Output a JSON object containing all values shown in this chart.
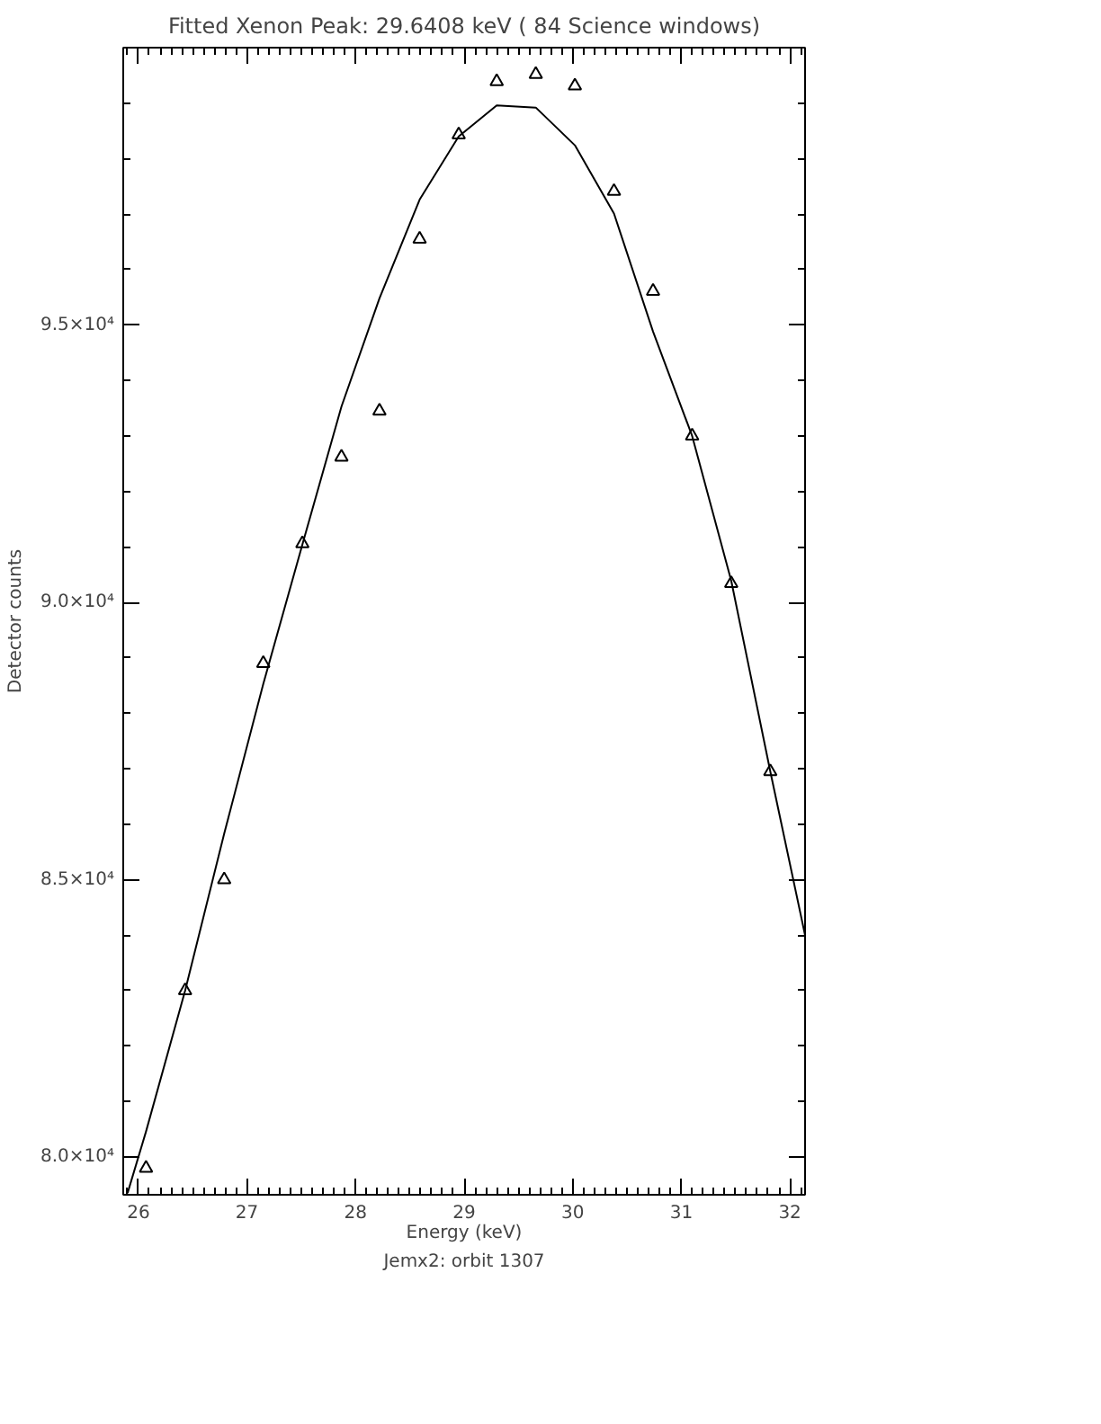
{
  "chart_data": {
    "type": "scatter",
    "title": "Fitted Xenon Peak: 29.6408 keV ( 84 Science windows)",
    "xlabel": "Energy (keV)",
    "ylabel": "Detector counts",
    "annotations": [
      "Jemx2: orbit 1307"
    ],
    "xlim": [
      25.86,
      32.14
    ],
    "ylim": [
      79320,
      100000
    ],
    "xticks": [
      26,
      27,
      28,
      29,
      30,
      31,
      32
    ],
    "yticks": [
      {
        "value": 80000,
        "label": "8.0×10⁴"
      },
      {
        "value": 85000,
        "label": "8.5×10⁴"
      },
      {
        "value": 90000,
        "label": "9.0×10⁴"
      },
      {
        "value": 95000,
        "label": "9.5×10⁴"
      },
      {
        "value": 100000,
        "label": null
      }
    ],
    "grid": false,
    "series": [
      {
        "marker": "triangle",
        "color": "#000000",
        "x": [
          26.07,
          26.43,
          26.79,
          27.15,
          27.51,
          27.87,
          28.22,
          28.59,
          28.95,
          29.3,
          29.66,
          30.02,
          30.38,
          30.74,
          31.1,
          31.46,
          31.82
        ],
        "values": [
          79800,
          83000,
          85000,
          88900,
          91060,
          92620,
          93450,
          96550,
          98430,
          99390,
          99520,
          99310,
          97410,
          95610,
          93000,
          90340,
          86950
        ]
      },
      {
        "type": "line",
        "marker": "none",
        "line_style": "solid",
        "color": "#000000",
        "x": [
          25.9,
          26.07,
          26.43,
          26.79,
          27.15,
          27.51,
          27.87,
          28.22,
          28.59,
          28.95,
          29.3,
          29.66,
          30.02,
          30.38,
          30.74,
          31.1,
          31.46,
          31.82,
          32.14
        ],
        "values": [
          79350,
          80460,
          83000,
          85830,
          88530,
          91040,
          93530,
          95480,
          97260,
          98400,
          98960,
          98920,
          98240,
          97010,
          94880,
          93000,
          90390,
          86950,
          84000
        ]
      }
    ]
  }
}
